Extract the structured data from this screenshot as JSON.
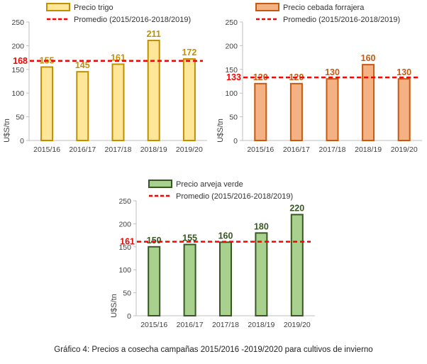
{
  "caption": "Gráfico 4: Precios a cosecha campañas 2015/2016 -2019/2020 para cultivos de invierno",
  "chart_data": [
    {
      "type": "bar",
      "categories": [
        "2015/16",
        "2016/17",
        "2017/18",
        "2018/19",
        "2019/20"
      ],
      "ylabel": "U$S/tn",
      "ylim": [
        0,
        250
      ],
      "yticks": [
        0,
        50,
        100,
        150,
        200,
        250
      ],
      "grid": false,
      "legend_position": "top",
      "series": [
        {
          "name": "Precio trigo",
          "kind": "bar",
          "values": [
            155,
            145,
            161,
            211,
            172
          ],
          "fill": "#FFE699",
          "stroke": "#BF9000",
          "label_color": "#BF9000"
        },
        {
          "name": "Promedio (2015/2016-2018/2019)",
          "kind": "line",
          "value": 168,
          "color": "#FF0000",
          "dashed": true
        }
      ]
    },
    {
      "type": "bar",
      "categories": [
        "2015/16",
        "2016/17",
        "2017/18",
        "2018/19",
        "2019/20"
      ],
      "ylabel": "U$S/tn",
      "ylim": [
        0,
        250
      ],
      "yticks": [
        0,
        50,
        100,
        150,
        200,
        250
      ],
      "grid": false,
      "legend_position": "top",
      "series": [
        {
          "name": "Precio cebada forrajera",
          "kind": "bar",
          "values": [
            120,
            120,
            130,
            160,
            130
          ],
          "fill": "#F4B183",
          "stroke": "#C55A11",
          "label_color": "#C55A11"
        },
        {
          "name": "Promedio (2015/2016-2018/2019)",
          "kind": "line",
          "value": 133,
          "color": "#FF0000",
          "dashed": true
        }
      ]
    },
    {
      "type": "bar",
      "categories": [
        "2015/16",
        "2016/17",
        "2017/18",
        "2018/19",
        "2019/20"
      ],
      "ylabel": "U$S/tn",
      "ylim": [
        0,
        250
      ],
      "yticks": [
        0,
        50,
        100,
        150,
        200,
        250
      ],
      "grid": false,
      "legend_position": "top",
      "series": [
        {
          "name": "Precio arveja verde",
          "kind": "bar",
          "values": [
            150,
            155,
            160,
            180,
            220
          ],
          "fill": "#A9D18E",
          "stroke": "#385723",
          "label_color": "#385723"
        },
        {
          "name": "Promedio (2015/2016-2018/2019)",
          "kind": "line",
          "value": 161,
          "color": "#FF0000",
          "dashed": true
        }
      ]
    }
  ]
}
